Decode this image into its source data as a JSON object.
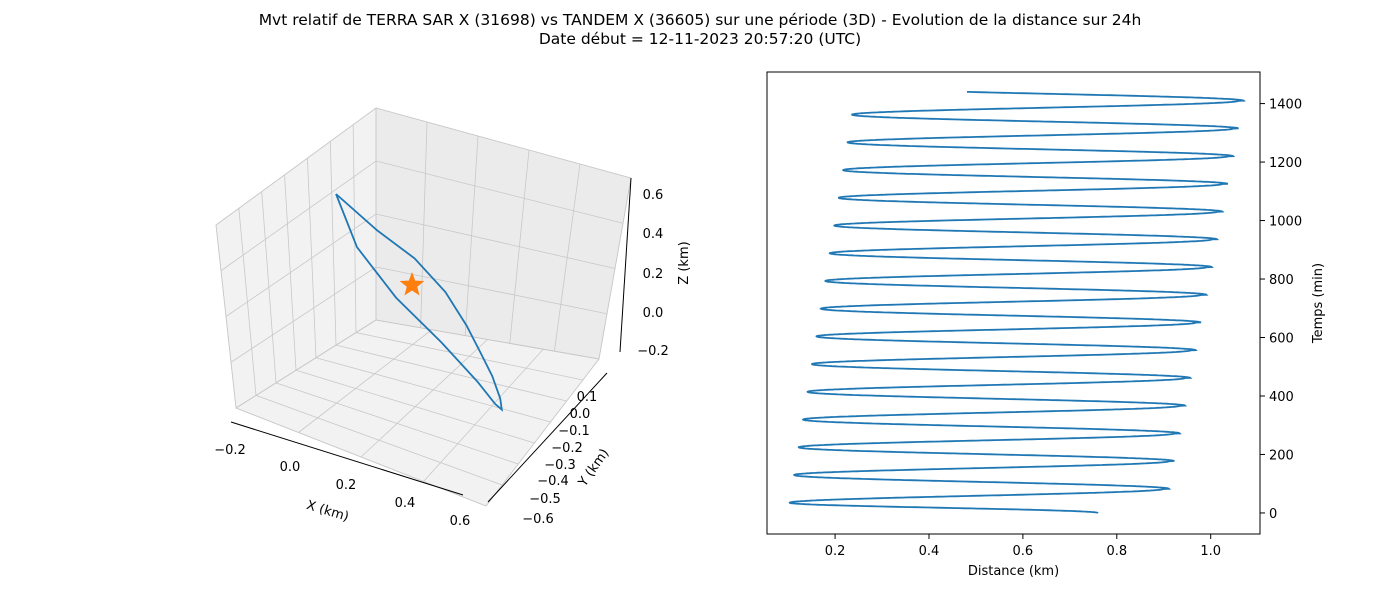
{
  "figure": {
    "title_line1": "Mvt relatif de TERRA SAR X (31698) vs TANDEM X (36605) sur une période (3D) - Evolution de la distance sur 24h",
    "title_line2": "Date début = 12-11-2023 20:57:20 (UTC)"
  },
  "colors": {
    "series": "#1f77b4",
    "marker": "#ff7f0e",
    "grid": "#b0b0b0",
    "pane": "#f2f2f2",
    "axis": "#000000"
  },
  "chart_data": [
    {
      "type": "line3d",
      "xlabel": "X (km)",
      "ylabel": "Y (km)",
      "zlabel": "Z (km)",
      "x_ticks": [
        "−0.2",
        "0.0",
        "0.2",
        "0.4",
        "0.6"
      ],
      "y_ticks": [
        "−0.6",
        "−0.5",
        "−0.4",
        "−0.3",
        "−0.2",
        "−0.1",
        "0.0",
        "0.1"
      ],
      "z_ticks": [
        "−0.2",
        "0.0",
        "0.2",
        "0.4",
        "0.6"
      ],
      "grid": true,
      "marker": {
        "shape": "star",
        "x": 0.21,
        "y": -0.1,
        "z": 0.18
      },
      "series": [
        {
          "x": [
            0.05,
            0.18,
            0.3,
            0.4,
            0.47,
            0.52,
            0.56,
            0.59,
            0.6,
            0.58,
            0.52,
            0.4,
            0.25,
            0.12,
            0.05
          ],
          "y": [
            -0.05,
            -0.07,
            -0.12,
            -0.18,
            -0.24,
            -0.32,
            -0.4,
            -0.48,
            -0.56,
            -0.57,
            -0.5,
            -0.38,
            -0.25,
            -0.12,
            -0.05
          ],
          "z": [
            0.55,
            0.42,
            0.32,
            0.2,
            0.08,
            -0.02,
            -0.1,
            -0.18,
            -0.22,
            -0.2,
            -0.12,
            0.02,
            0.18,
            0.36,
            0.55
          ]
        }
      ]
    },
    {
      "type": "line",
      "xlabel": "Distance (km)",
      "ylabel": "Temps (min)",
      "yaxis_position": "right",
      "xlim": [
        0.055,
        1.105
      ],
      "ylim": [
        -72,
        1508
      ],
      "x_ticks": [
        0.2,
        0.4,
        0.6,
        0.8,
        1.0
      ],
      "x_tick_labels": [
        "0.2",
        "0.4",
        "0.6",
        "0.8",
        "1.0"
      ],
      "y_ticks": [
        0,
        200,
        400,
        600,
        800,
        1000,
        1200,
        1400
      ],
      "y_tick_labels": [
        "0",
        "200",
        "400",
        "600",
        "800",
        "1000",
        "1200",
        "1400"
      ],
      "grid": false,
      "min_period_min": 94.8,
      "min_phase_min": 35,
      "max_first_min": 83,
      "end_time_min": 1440,
      "start_distance": 0.76,
      "min_start": 0.1,
      "min_slope_per_min": 0.0001,
      "max_start": 0.89,
      "max_slope_per_min": 0.00012
    }
  ]
}
